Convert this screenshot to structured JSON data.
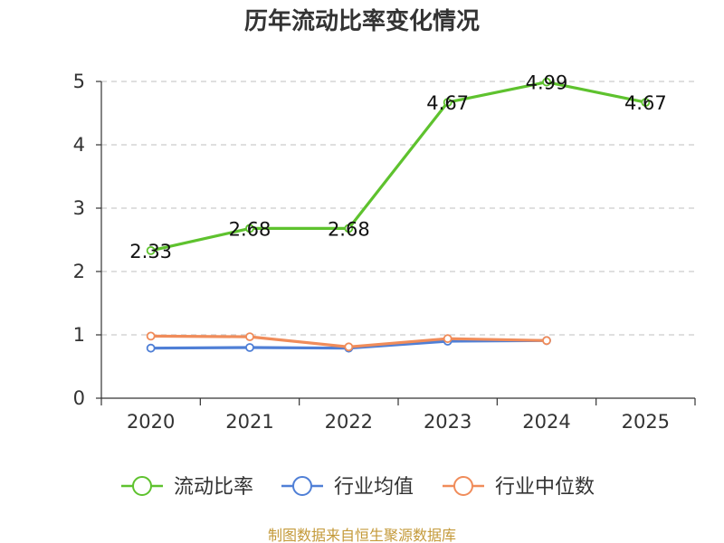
{
  "chart_data": {
    "type": "line",
    "title": "历年流动比率变化情况",
    "categories": [
      "2020",
      "2021",
      "2022",
      "2023",
      "2024",
      "2025"
    ],
    "ylim": [
      0,
      5
    ],
    "yticks": [
      0,
      1,
      2,
      3,
      4,
      5
    ],
    "grid": true,
    "legend_position": "bottom",
    "series": [
      {
        "name": "流动比率",
        "color": "#5ec22e",
        "values": [
          2.33,
          2.68,
          2.68,
          4.67,
          4.99,
          4.67
        ],
        "labels": [
          "2.33",
          "2.68",
          "2.68",
          "4.67",
          "4.99",
          "4.67"
        ],
        "show_labels": true
      },
      {
        "name": "行业均值",
        "color": "#4f7fd6",
        "values": [
          0.79,
          0.8,
          0.79,
          0.9,
          0.91,
          null
        ],
        "show_labels": false
      },
      {
        "name": "行业中位数",
        "color": "#f08c5a",
        "values": [
          0.98,
          0.97,
          0.81,
          0.94,
          0.91,
          null
        ],
        "show_labels": false
      }
    ]
  },
  "source_text": "制图数据来自恒生聚源数据库",
  "colors": {
    "source": "#c49a3a",
    "axis": "#333333",
    "grid": "#cccccc"
  }
}
